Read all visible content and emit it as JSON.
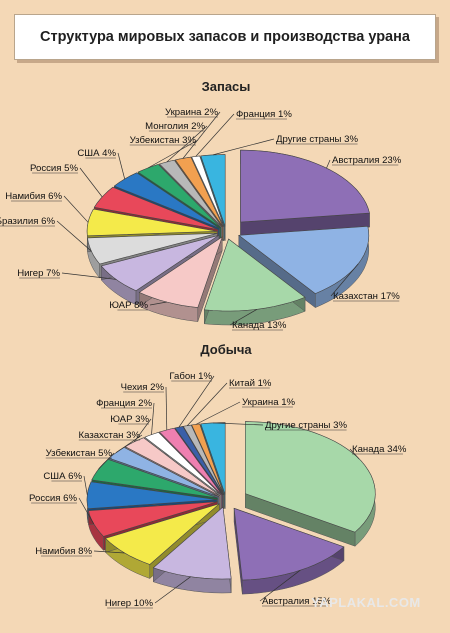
{
  "title": "Структура мировых запасов и производства урана",
  "watermark": "YAPLAKAL.COM",
  "chart_data": [
    {
      "type": "pie",
      "title": "Запасы",
      "labels": [
        "Австралия 23%",
        "Казахстан 17%",
        "Канада 13%",
        "ЮАР 8%",
        "Нигер 7%",
        "Бразилия 6%",
        "Намибия 6%",
        "Россия 5%",
        "США 4%",
        "Узбекистан 3%",
        "Монголия 2%",
        "Украина 2%",
        "Франция 1%",
        "Другие страны 3%"
      ],
      "values": [
        23,
        17,
        13,
        8,
        7,
        6,
        6,
        5,
        4,
        3,
        2,
        2,
        1,
        3
      ],
      "colors": [
        "#8e6fb6",
        "#8fb3e4",
        "#a7d8a9",
        "#f6c9c7",
        "#c8b7e0",
        "#dcdcdc",
        "#f4ea4a",
        "#e8485a",
        "#2a78c4",
        "#2da86c",
        "#b8b8b8",
        "#f2a050",
        "#ffffff",
        "#39b5e0"
      ]
    },
    {
      "type": "pie",
      "title": "Добыча",
      "labels": [
        "Канада 34%",
        "Австралия 15%",
        "Нигер 10%",
        "Намибия 8%",
        "Россия 6%",
        "США 6%",
        "Узбекистан 5%",
        "Казахстан 3%",
        "ЮАР 3%",
        "Франция 2%",
        "Чехия 2%",
        "Габон 1%",
        "Китай 1%",
        "Украина 1%",
        "Другие страны 3%"
      ],
      "values": [
        34,
        15,
        10,
        8,
        6,
        6,
        5,
        3,
        3,
        2,
        2,
        1,
        1,
        1,
        3
      ],
      "colors": [
        "#a7d8a9",
        "#8e6fb6",
        "#c8b7e0",
        "#f4ea4a",
        "#e8485a",
        "#2a78c4",
        "#2da86c",
        "#8fb3e4",
        "#f6c9c7",
        "#ffffff",
        "#ef7fb0",
        "#3a5fa8",
        "#b8b8b8",
        "#f2a050",
        "#39b5e0"
      ]
    }
  ]
}
